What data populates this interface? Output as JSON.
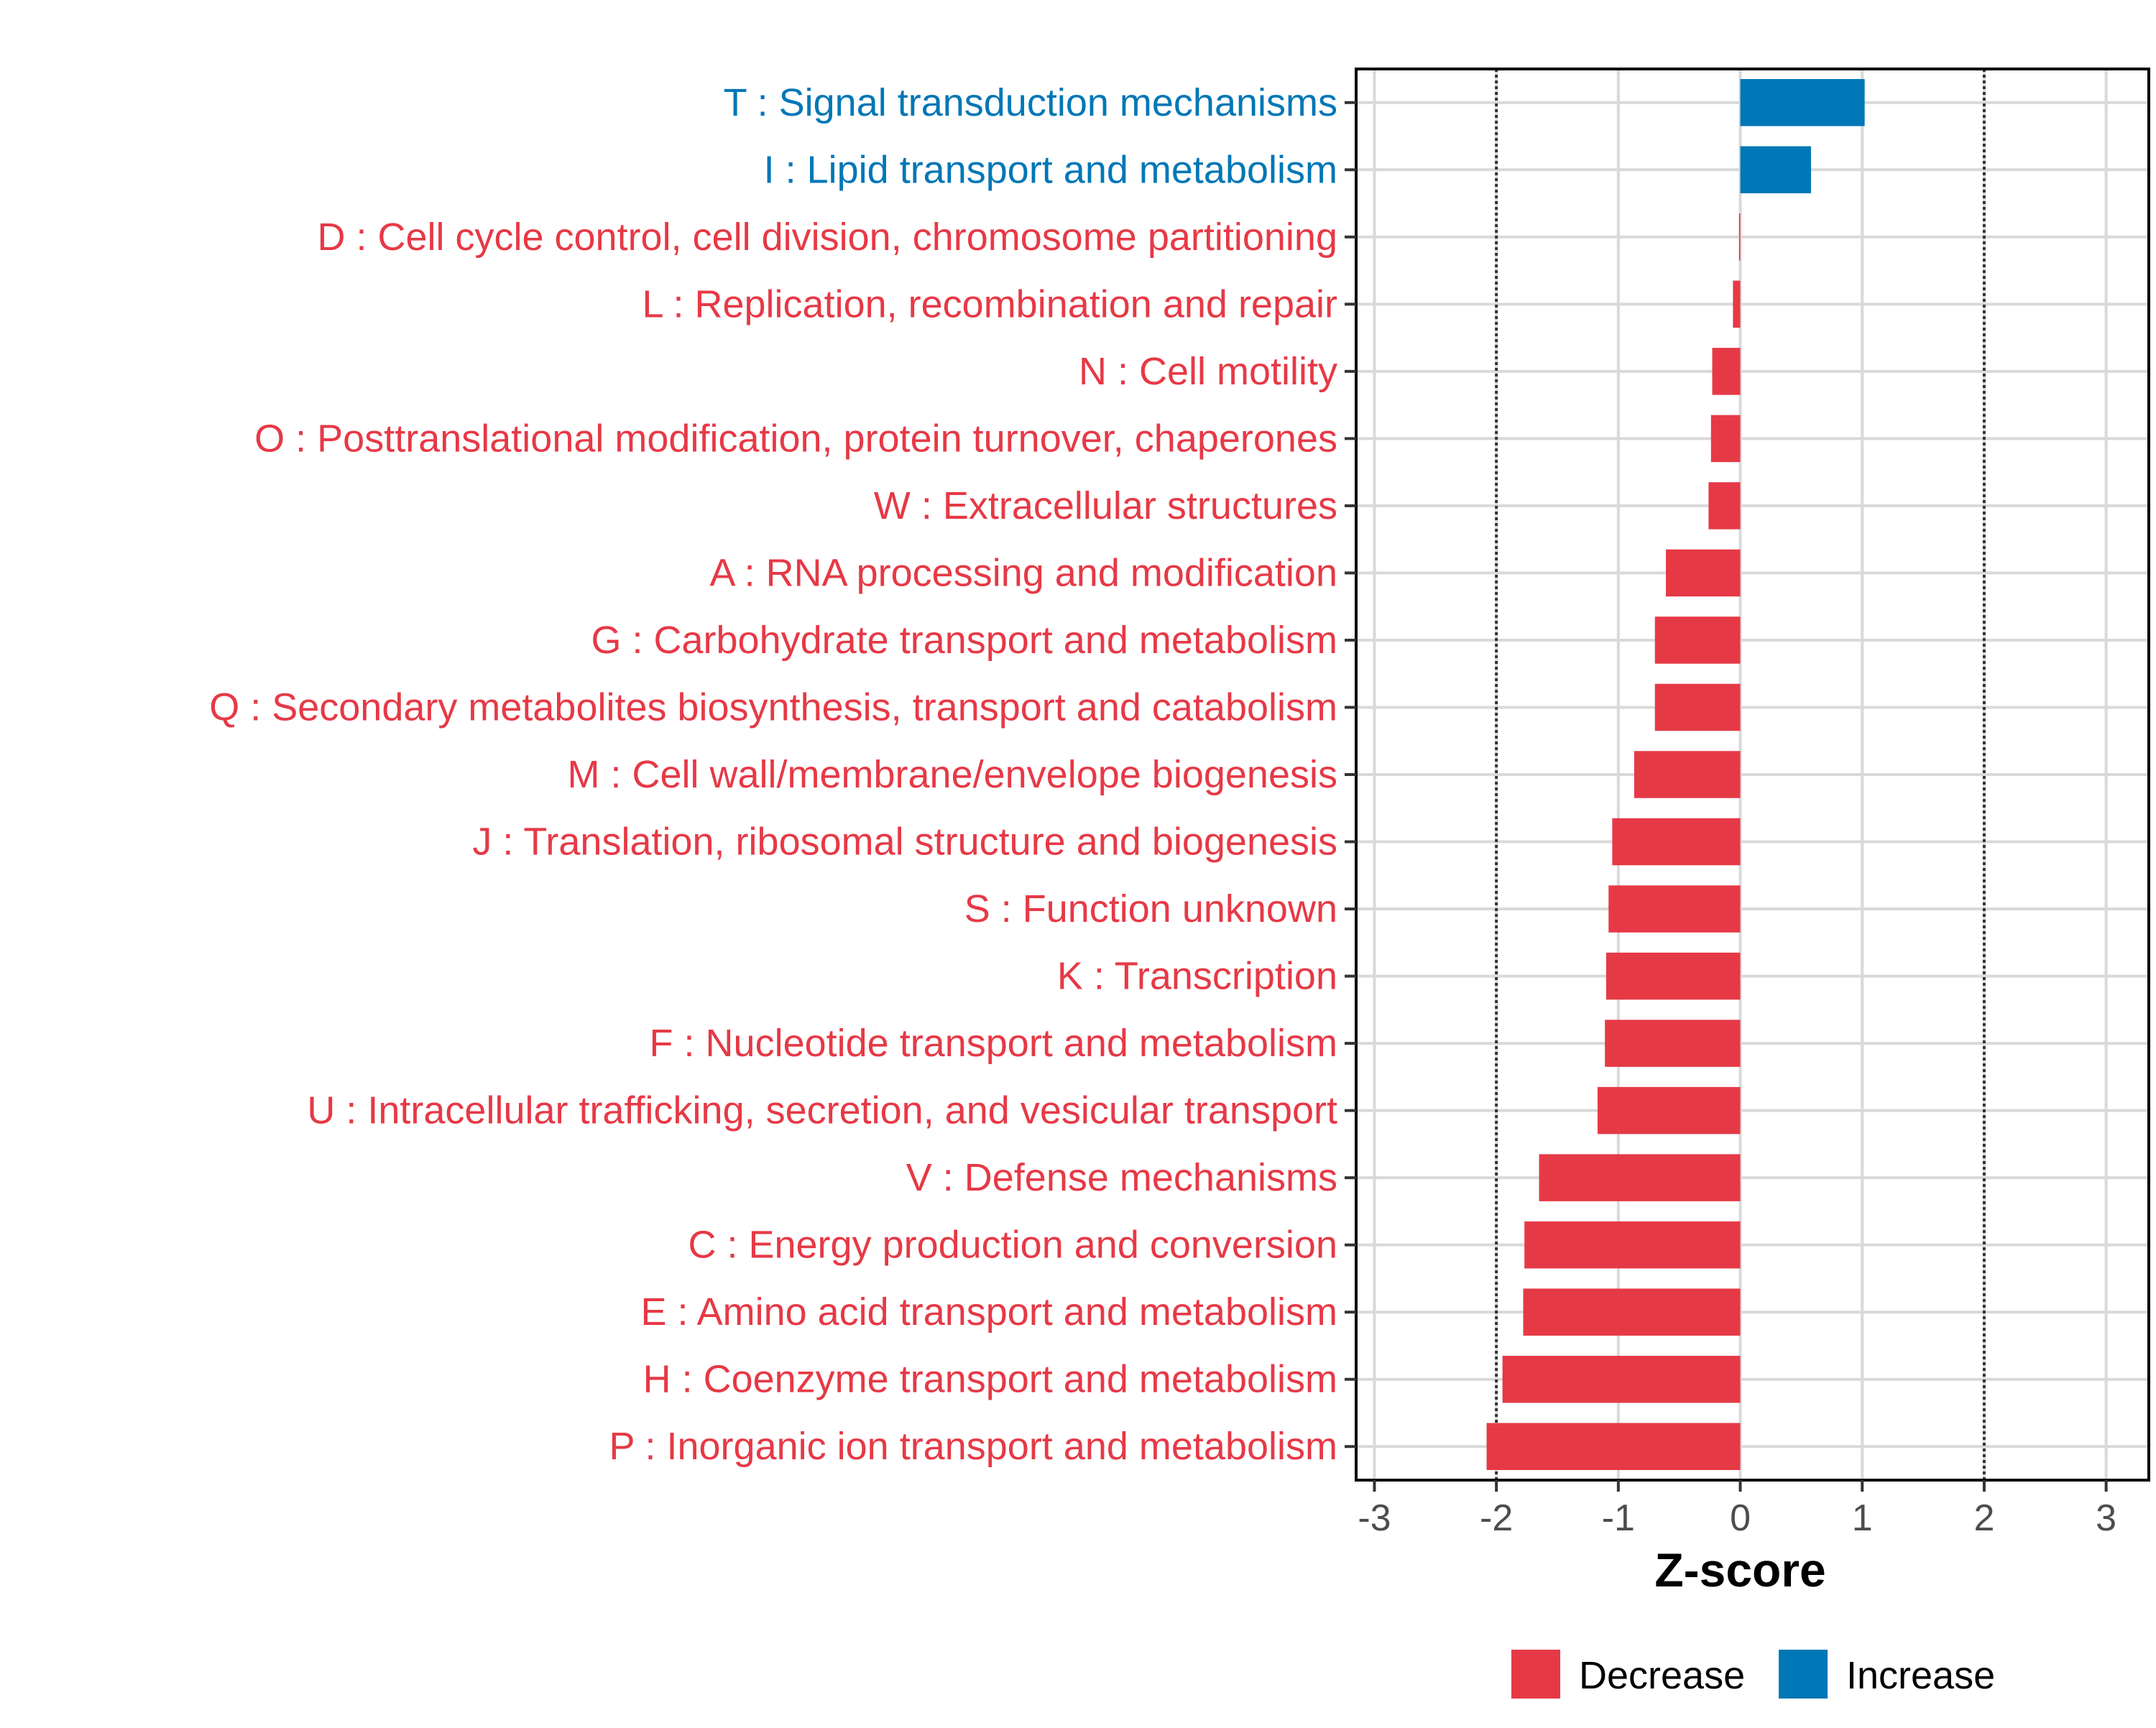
{
  "chart_data": {
    "type": "bar",
    "orientation": "horizontal",
    "title": "",
    "xlabel": "Z-score",
    "ylabel": "",
    "xlim": [
      -3.15,
      3.35
    ],
    "xticks": [
      -3,
      -2,
      -1,
      0,
      1,
      2,
      3
    ],
    "xtick_labels": [
      "-3",
      "-2",
      "-1",
      "0",
      "1",
      "2",
      "3"
    ],
    "reference_lines": [
      -2,
      2
    ],
    "grid": true,
    "categories": [
      "T : Signal transduction mechanisms",
      "I : Lipid transport and metabolism",
      "D : Cell cycle control, cell division, chromosome partitioning",
      "L : Replication, recombination and repair",
      "N : Cell motility",
      "O : Posttranslational modification, protein turnover, chaperones",
      "W : Extracellular structures",
      "A : RNA processing and modification",
      "G : Carbohydrate transport and metabolism",
      "Q : Secondary metabolites biosynthesis, transport and catabolism",
      "M : Cell wall/membrane/envelope biogenesis",
      "J : Translation, ribosomal structure and biogenesis",
      "S : Function unknown",
      "K : Transcription",
      "F : Nucleotide transport and metabolism",
      "U : Intracellular trafficking, secretion, and vesicular transport",
      "V : Defense mechanisms",
      "C : Energy production and conversion",
      "E : Amino acid transport and metabolism",
      "H : Coenzyme transport and metabolism",
      "P : Inorganic ion transport and metabolism"
    ],
    "values": [
      1.02,
      0.58,
      -0.01,
      -0.06,
      -0.23,
      -0.24,
      -0.26,
      -0.61,
      -0.7,
      -0.7,
      -0.87,
      -1.05,
      -1.08,
      -1.1,
      -1.11,
      -1.17,
      -1.65,
      -1.77,
      -1.78,
      -1.95,
      -2.08
    ],
    "legend": {
      "placement": "bottom",
      "entries": [
        {
          "label": "Decrease",
          "color": "#E63946"
        },
        {
          "label": "Increase",
          "color": "#0077B6"
        }
      ]
    },
    "colors": {
      "decrease": "#E63946",
      "increase": "#0077B6",
      "grid": "#D9D9D9",
      "axis": "#000000",
      "tick_label": "#4D4D4D",
      "reference_line": "#333333"
    }
  }
}
